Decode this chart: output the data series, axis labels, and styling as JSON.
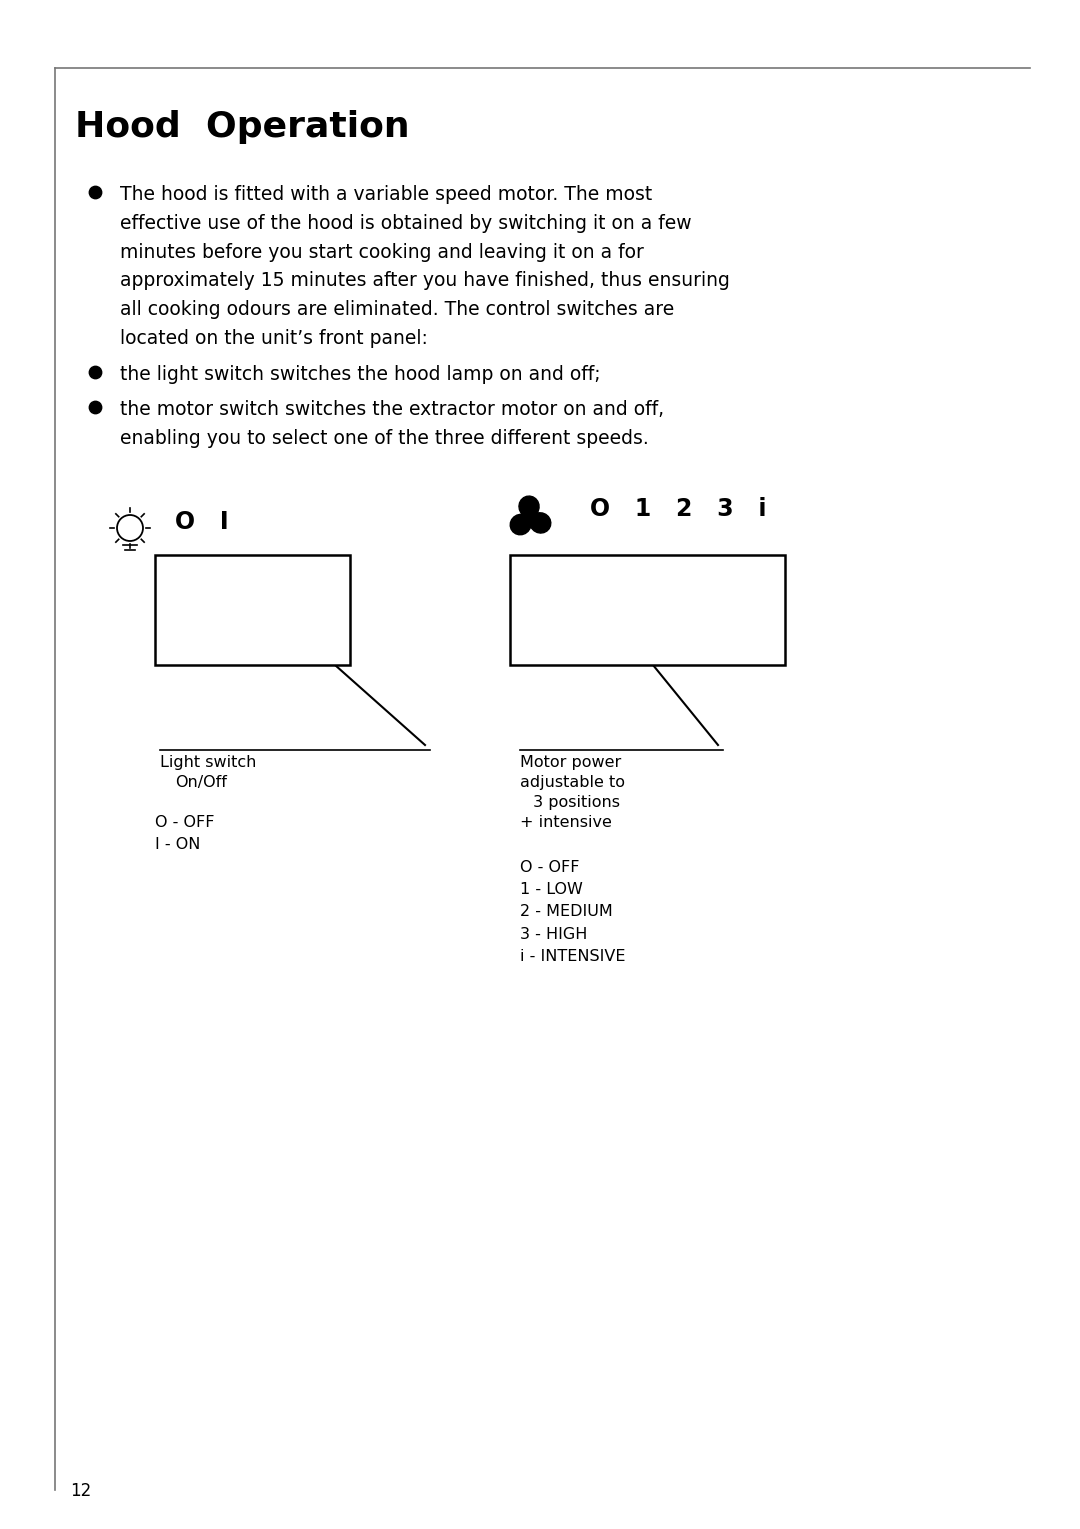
{
  "title": "Hood  Operation",
  "title_fontsize": 26,
  "title_fontweight": "bold",
  "body_fontsize": 13.5,
  "background_color": "#ffffff",
  "border_color": "#777777",
  "text_color": "#000000",
  "page_number": "12",
  "bullet1": "The hood is fitted with a variable speed motor. The most\neffective use of the hood is obtained by switching it on a few\nminutes before you start cooking and leaving it on a for\napproximately 15 minutes after you have finished, thus ensuring\nall cooking odours are eliminated. The control switches are\nlocated on the unit’s front panel:",
  "bullet2": "the light switch switches the hood lamp on and off;",
  "bullet3": "the motor switch switches the extractor motor on and off,\nenabling you to select one of the three different speeds.",
  "left_label": "O   I",
  "right_label": "O   1   2   3   i",
  "left_ann_line1": "Light switch",
  "left_ann_line2": "On/Off",
  "left_legend": "O - OFF\nI - ON",
  "right_ann_line1": "Motor power",
  "right_ann_line2": "adjustable to",
  "right_ann_line3": " 3 positions",
  "right_ann_line4": "+ intensive",
  "right_legend": "O - OFF\n1 - LOW\n2 - MEDIUM\n3 - HIGH\ni - INTENSIVE"
}
